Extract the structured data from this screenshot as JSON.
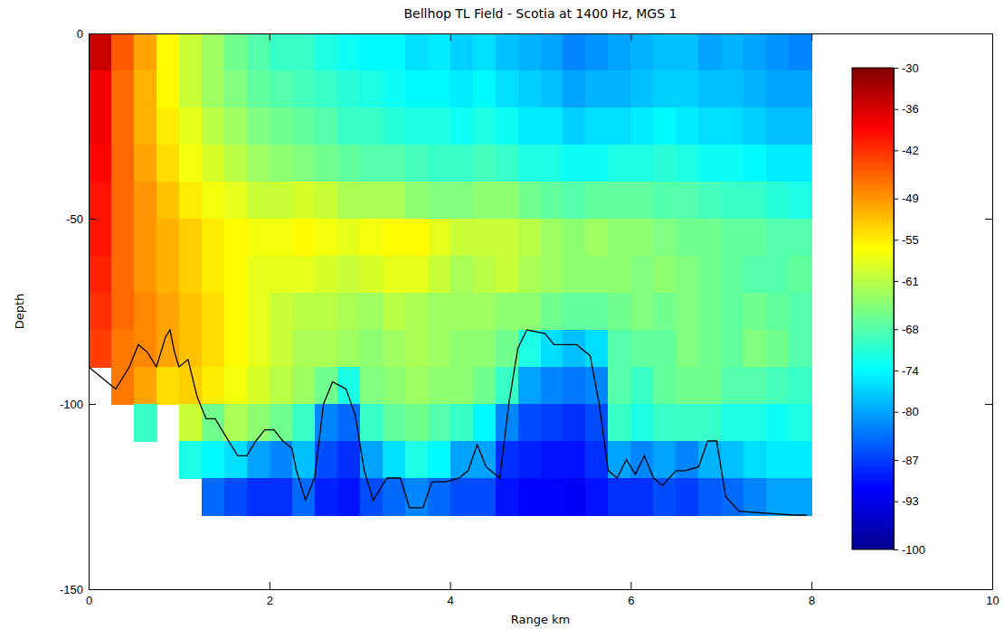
{
  "chart_data": {
    "type": "heatmap",
    "title": "Bellhop TL Field - Scotia at 1400 Hz, MGS 1",
    "xlabel": "Range km",
    "ylabel": "Depth",
    "xlim": [
      0,
      10
    ],
    "xticks": [
      0,
      2,
      4,
      6,
      8,
      10
    ],
    "ylim": [
      -150,
      0
    ],
    "yticks": [
      -150,
      -100,
      -50,
      0
    ],
    "x_bins": [
      0,
      0.25,
      0.5,
      0.75,
      1,
      1.25,
      1.5,
      1.75,
      2,
      2.25,
      2.5,
      2.75,
      3,
      3.25,
      3.5,
      3.75,
      4,
      4.25,
      4.5,
      4.75,
      5,
      5.25,
      5.5,
      5.75,
      6,
      6.25,
      6.5,
      6.75,
      7,
      7.25,
      7.5,
      7.75,
      8
    ],
    "y_bins": [
      0,
      -10,
      -20,
      -30,
      -40,
      -50,
      -60,
      -70,
      -80,
      -90,
      -100,
      -110,
      -120,
      -130
    ],
    "cells": [
      [
        -35,
        -45,
        -50,
        -56,
        -60,
        -63,
        -66,
        -68,
        -70,
        -70,
        -72,
        -73,
        -74,
        -74,
        -76,
        -75,
        -77,
        -76,
        -78,
        -79,
        -80,
        -82,
        -81,
        -80,
        -79,
        -78,
        -78,
        -80,
        -79,
        -80,
        -81,
        -82
      ],
      [
        -38,
        -46,
        -51,
        -56,
        -60,
        -63,
        -65,
        -67,
        -68,
        -69,
        -70,
        -71,
        -72,
        -73,
        -74,
        -74,
        -75,
        -74,
        -76,
        -77,
        -78,
        -80,
        -79,
        -79,
        -78,
        -77,
        -77,
        -78,
        -78,
        -79,
        -80,
        -80
      ],
      [
        -38,
        -46,
        -51,
        -55,
        -58,
        -61,
        -63,
        -65,
        -66,
        -67,
        -68,
        -70,
        -70,
        -71,
        -72,
        -72,
        -73,
        -72,
        -73,
        -75,
        -75,
        -77,
        -76,
        -76,
        -75,
        -74,
        -75,
        -76,
        -76,
        -77,
        -78,
        -78
      ],
      [
        -39,
        -46,
        -50,
        -54,
        -57,
        -59,
        -61,
        -63,
        -64,
        -65,
        -66,
        -67,
        -68,
        -68,
        -69,
        -70,
        -70,
        -69,
        -70,
        -72,
        -72,
        -73,
        -73,
        -72,
        -72,
        -71,
        -72,
        -73,
        -73,
        -74,
        -75,
        -75
      ],
      [
        -40,
        -46,
        -49,
        -52,
        -55,
        -57,
        -58,
        -60,
        -60,
        -59,
        -60,
        -62,
        -62,
        -62,
        -64,
        -65,
        -65,
        -64,
        -64,
        -66,
        -67,
        -68,
        -67,
        -67,
        -67,
        -68,
        -68,
        -69,
        -70,
        -70,
        -71,
        -72
      ],
      [
        -40,
        -46,
        -49,
        -51,
        -53,
        -55,
        -56,
        -57,
        -57,
        -56,
        -57,
        -58,
        -57,
        -56,
        -56,
        -58,
        -60,
        -60,
        -60,
        -61,
        -63,
        -64,
        -63,
        -64,
        -64,
        -65,
        -66,
        -66,
        -67,
        -67,
        -68,
        -68
      ],
      [
        -41,
        -46,
        -49,
        -51,
        -53,
        -55,
        -56,
        -58,
        -58,
        -58,
        -59,
        -60,
        -59,
        -58,
        -58,
        -60,
        -62,
        -61,
        -60,
        -62,
        -63,
        -64,
        -64,
        -64,
        -65,
        -64,
        -65,
        -66,
        -67,
        -68,
        -68,
        -67
      ],
      [
        -42,
        -46,
        -48,
        -50,
        -52,
        -54,
        -56,
        -58,
        -60,
        -61,
        -61,
        -62,
        -63,
        -61,
        -62,
        -63,
        -63,
        -63,
        -64,
        -64,
        -66,
        -67,
        -67,
        -66,
        -65,
        -66,
        -65,
        -66,
        -67,
        -66,
        -67,
        -68
      ],
      [
        -43,
        -47,
        -48,
        -50,
        -52,
        -54,
        -56,
        -58,
        -60,
        -62,
        -62,
        -63,
        -64,
        -63,
        -62,
        -63,
        -64,
        -64,
        -66,
        -72,
        -76,
        -78,
        -76,
        -68,
        -67,
        -67,
        -65,
        -66,
        -67,
        -65,
        -66,
        -68
      ],
      [
        null,
        -47,
        -50,
        -54,
        -53,
        -55,
        -57,
        -59,
        -61,
        -63,
        -66,
        -72,
        -65,
        -64,
        -63,
        -64,
        -64,
        -66,
        -70,
        -80,
        -82,
        -83,
        -82,
        -68,
        -70,
        -67,
        -66,
        -66,
        -68,
        -68,
        -69,
        -70
      ],
      [
        null,
        null,
        -70,
        null,
        -60,
        -66,
        -62,
        -64,
        -66,
        -70,
        -82,
        -84,
        -70,
        -67,
        -66,
        -68,
        -70,
        -74,
        -82,
        -86,
        -87,
        -88,
        -86,
        -70,
        -72,
        -70,
        -70,
        -70,
        -72,
        -72,
        -73,
        -72
      ],
      [
        null,
        null,
        null,
        null,
        -72,
        -74,
        -76,
        -80,
        -82,
        -78,
        -86,
        -88,
        -80,
        -76,
        -72,
        -74,
        -80,
        -80,
        -88,
        -89,
        -90,
        -90,
        -88,
        -80,
        -82,
        -80,
        -82,
        -79,
        -78,
        -76,
        -75,
        -75
      ],
      [
        null,
        null,
        null,
        null,
        null,
        -84,
        -86,
        -88,
        -88,
        -84,
        -89,
        -90,
        -86,
        -84,
        -82,
        -84,
        -86,
        -86,
        -90,
        -91,
        -91,
        -92,
        -90,
        -88,
        -88,
        -86,
        -87,
        -85,
        -84,
        -82,
        -80,
        -80
      ]
    ],
    "colorbar": {
      "lim": [
        -100,
        -30
      ],
      "ticks": [
        -30,
        -36,
        -42,
        -49,
        -55,
        -61,
        -68,
        -74,
        -80,
        -87,
        -93,
        -100
      ]
    },
    "bottom": {
      "color": "#000000",
      "x": [
        0,
        0.1,
        0.3,
        0.45,
        0.55,
        0.65,
        0.75,
        0.85,
        0.9,
        0.95,
        1.0,
        1.1,
        1.2,
        1.3,
        1.4,
        1.5,
        1.65,
        1.75,
        1.85,
        1.95,
        2.05,
        2.15,
        2.25,
        2.3,
        2.4,
        2.5,
        2.6,
        2.7,
        2.85,
        2.95,
        3.05,
        3.15,
        3.3,
        3.45,
        3.55,
        3.7,
        3.8,
        3.95,
        4.1,
        4.2,
        4.3,
        4.4,
        4.55,
        4.65,
        4.75,
        4.85,
        5.05,
        5.15,
        5.4,
        5.55,
        5.65,
        5.75,
        5.85,
        5.95,
        6.05,
        6.15,
        6.25,
        6.35,
        6.5,
        6.6,
        6.75,
        6.85,
        6.95,
        7.05,
        7.2,
        7.8,
        7.95
      ],
      "y": [
        -90,
        -92,
        -96,
        -90,
        -84,
        -86,
        -90,
        -82,
        -80,
        -86,
        -90,
        -88,
        -98,
        -104,
        -104,
        -108,
        -114,
        -114,
        -110,
        -107,
        -107,
        -110,
        -112,
        -118,
        -126,
        -120,
        -100,
        -94,
        -96,
        -103,
        -118,
        -126,
        -120,
        -120,
        -128,
        -128,
        -121,
        -121,
        -120,
        -118,
        -111,
        -117,
        -120,
        -100,
        -85,
        -80,
        -81,
        -84,
        -84,
        -87,
        -100,
        -118,
        -120,
        -115,
        -119,
        -114,
        -120,
        -122,
        -118,
        -118,
        -117,
        -110,
        -110,
        -125,
        -129,
        -130,
        -130
      ]
    }
  }
}
